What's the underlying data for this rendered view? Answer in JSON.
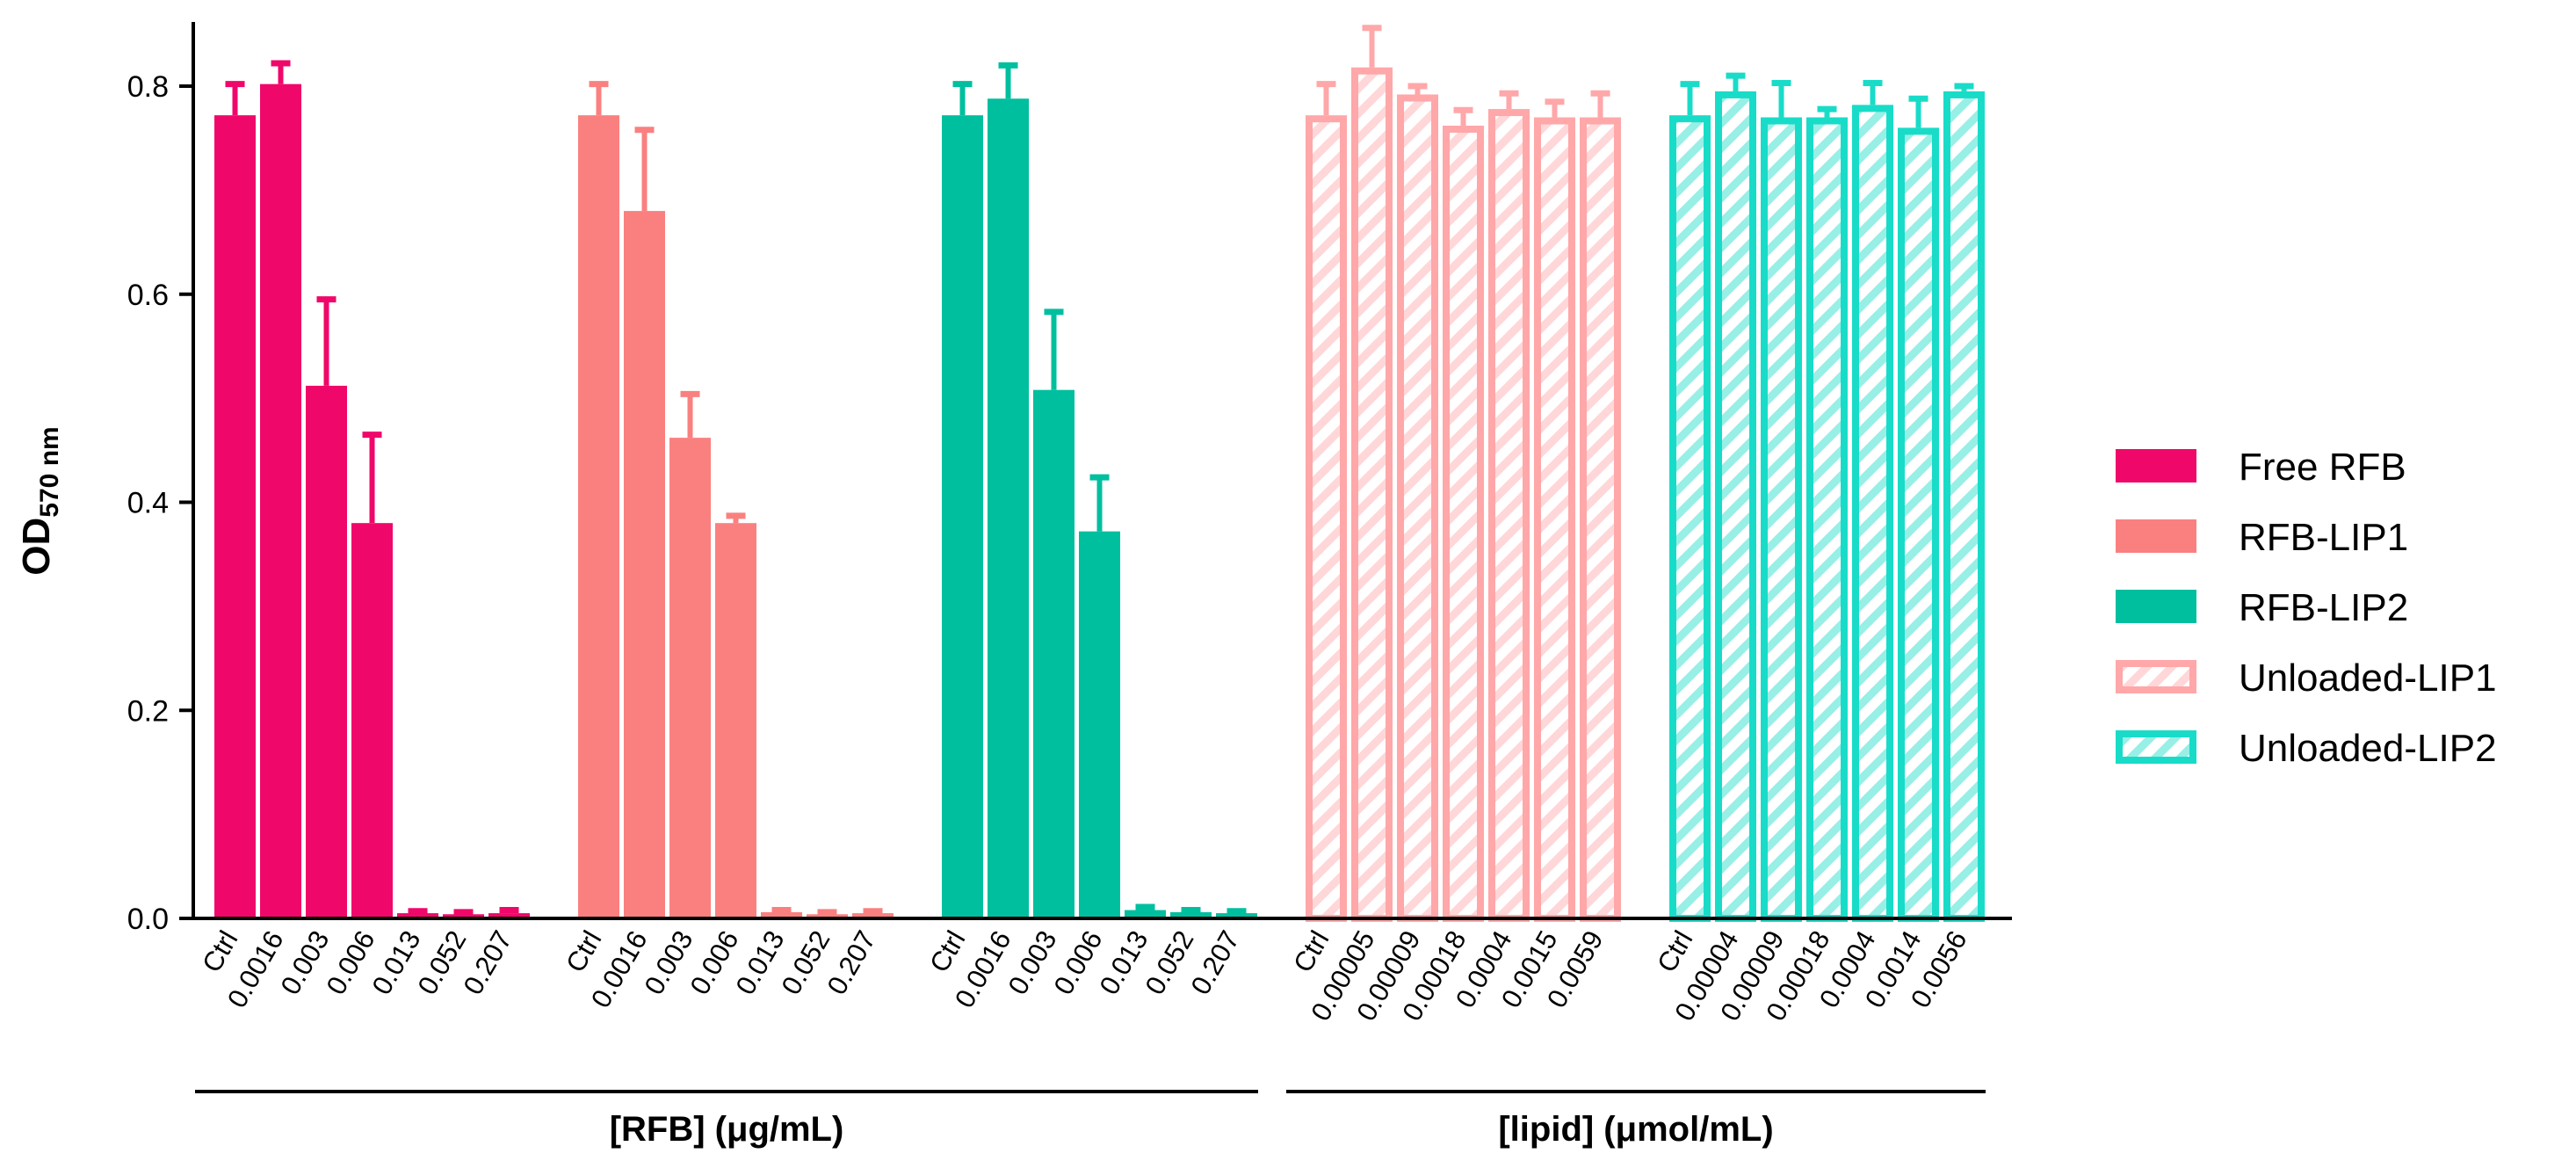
{
  "chart_data": {
    "type": "bar",
    "ylabel": "OD",
    "ylabel_sub": "570 nm",
    "ylim": [
      0,
      0.86
    ],
    "yticks": [
      "0.0",
      "0.2",
      "0.4",
      "0.6",
      "0.8"
    ],
    "grid": false,
    "legend_position": "right",
    "colors": {
      "Free RFB": "#f0076a",
      "RFB-LIP1": "#fa8080",
      "RFB-LIP2": "#00bf9f",
      "Unloaded-LIP1": "#ffa7a9",
      "Unloaded-LIP2": "#18dcc8"
    },
    "series": [
      {
        "name": "Free RFB",
        "style": "solid",
        "categories": [
          "Ctrl",
          "0.0016",
          "0.003",
          "0.006",
          "0.013",
          "0.052",
          "0.207"
        ],
        "values": [
          0.772,
          0.802,
          0.512,
          0.38,
          0.005,
          0.004,
          0.005
        ],
        "errors": [
          0.03,
          0.02,
          0.083,
          0.085,
          0.002,
          0.002,
          0.003
        ]
      },
      {
        "name": "RFB-LIP1",
        "style": "solid",
        "categories": [
          "Ctrl",
          "0.0016",
          "0.003",
          "0.006",
          "0.013",
          "0.052",
          "0.207"
        ],
        "values": [
          0.772,
          0.68,
          0.462,
          0.38,
          0.006,
          0.004,
          0.005
        ],
        "errors": [
          0.03,
          0.078,
          0.042,
          0.007,
          0.002,
          0.002,
          0.002
        ]
      },
      {
        "name": "RFB-LIP2",
        "style": "solid",
        "categories": [
          "Ctrl",
          "0.0016",
          "0.003",
          "0.006",
          "0.013",
          "0.052",
          "0.207"
        ],
        "values": [
          0.772,
          0.788,
          0.508,
          0.372,
          0.008,
          0.006,
          0.005
        ],
        "errors": [
          0.03,
          0.032,
          0.075,
          0.052,
          0.003,
          0.002,
          0.002
        ]
      },
      {
        "name": "Unloaded-LIP1",
        "style": "hatched",
        "categories": [
          "Ctrl",
          "0.00005",
          "0.00009",
          "0.00018",
          "0.0004",
          "0.0015",
          "0.0059"
        ],
        "values": [
          0.772,
          0.818,
          0.792,
          0.762,
          0.778,
          0.77,
          0.77
        ],
        "errors": [
          0.03,
          0.038,
          0.008,
          0.015,
          0.015,
          0.015,
          0.023
        ]
      },
      {
        "name": "Unloaded-LIP2",
        "style": "hatched",
        "categories": [
          "Ctrl",
          "0.00004",
          "0.00009",
          "0.00018",
          "0.0004",
          "0.0014",
          "0.0056"
        ],
        "values": [
          0.772,
          0.795,
          0.77,
          0.77,
          0.782,
          0.76,
          0.795
        ],
        "errors": [
          0.03,
          0.015,
          0.033,
          0.008,
          0.021,
          0.028,
          0.005
        ]
      }
    ],
    "group_labels": [
      {
        "text": "[RFB] (μg/mL)",
        "series": [
          0,
          2
        ]
      },
      {
        "text": "[lipid] (μmol/mL)",
        "series": [
          3,
          4
        ]
      }
    ]
  }
}
